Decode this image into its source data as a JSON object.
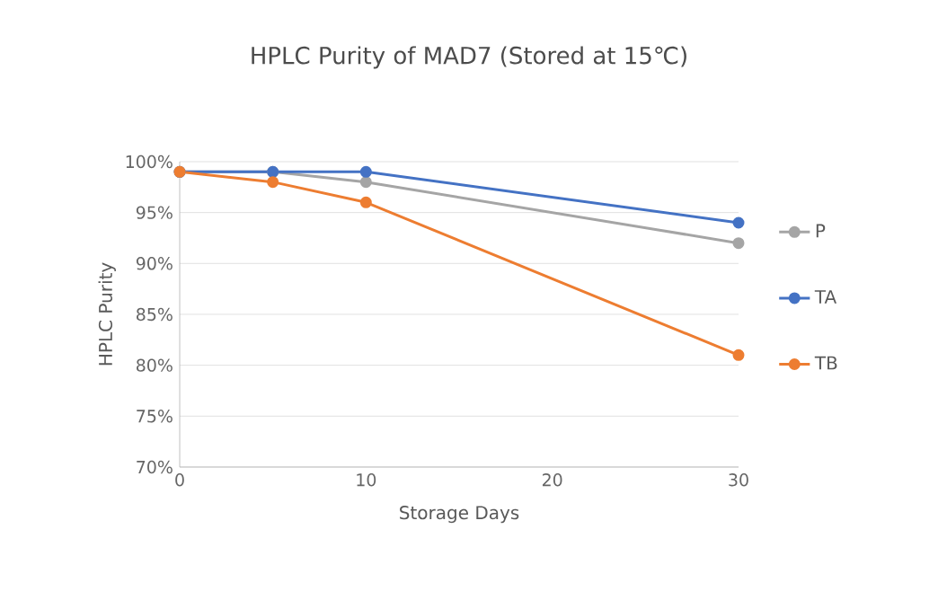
{
  "chart_data": {
    "type": "line",
    "title": "HPLC Purity of MAD7 (Stored at 15℃)",
    "xlabel": "Storage Days",
    "ylabel": "HPLC Purity",
    "x": [
      0,
      5,
      10,
      30
    ],
    "series": [
      {
        "name": "P",
        "color": "#a5a5a5",
        "values": [
          99,
          99,
          98,
          92
        ]
      },
      {
        "name": "TA",
        "color": "#4472c4",
        "values": [
          99,
          99,
          99,
          94
        ]
      },
      {
        "name": "TB",
        "color": "#ed7d31",
        "values": [
          99,
          98,
          96,
          81
        ]
      }
    ],
    "xlim": [
      0,
      30
    ],
    "xticks": [
      0,
      10,
      20,
      30
    ],
    "ylim": [
      70,
      100
    ],
    "yticks": [
      {
        "value": 70,
        "label": "70%"
      },
      {
        "value": 75,
        "label": "75%"
      },
      {
        "value": 80,
        "label": "80%"
      },
      {
        "value": 85,
        "label": "85%"
      },
      {
        "value": 90,
        "label": "90%"
      },
      {
        "value": 95,
        "label": "95%"
      },
      {
        "value": 100,
        "label": "100%"
      }
    ],
    "grid": "y",
    "legend": "right",
    "marker": "circle",
    "line_style": "solid"
  }
}
